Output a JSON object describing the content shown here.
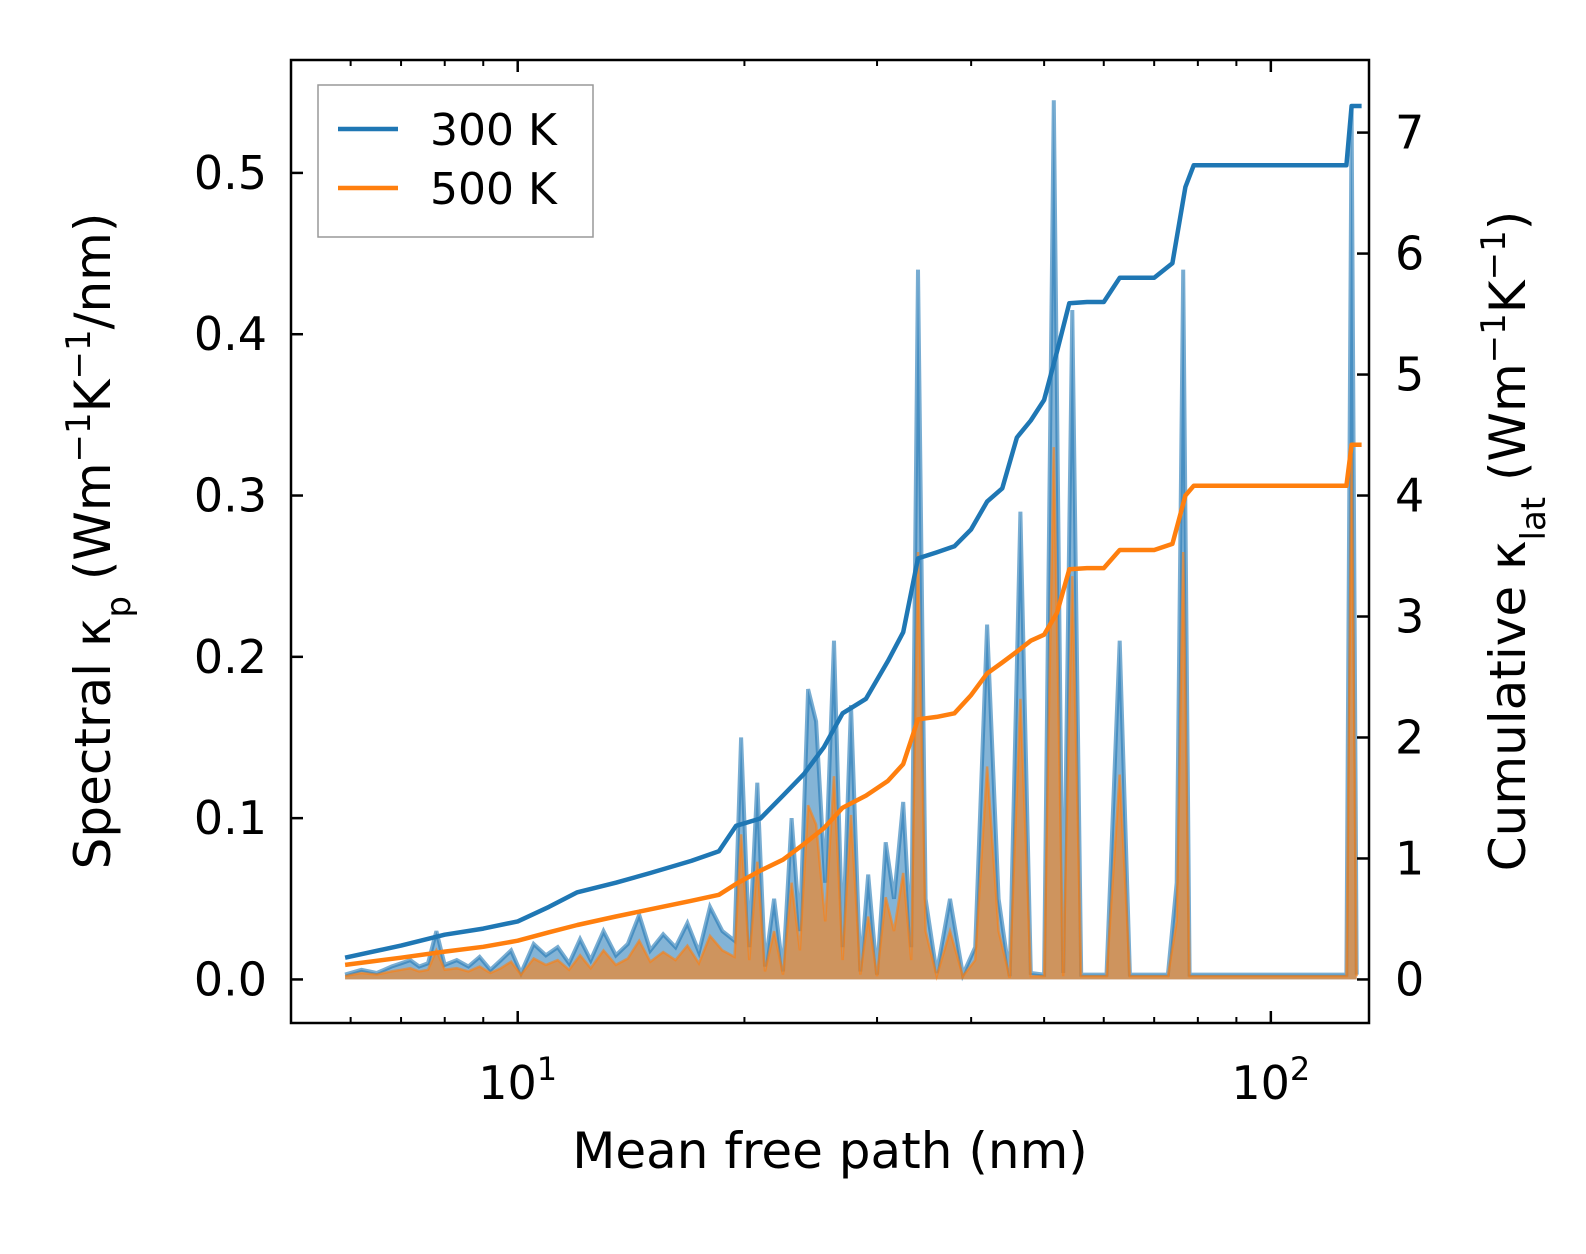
{
  "chart_data": {
    "type": "line",
    "xscale": "log",
    "xlabel": "Mean free path (nm)",
    "ylabel_left": "Spectral κp (Wm−1K−1/nm)",
    "ylabel_right": "Cumulative κlat (Wm−1K−1)",
    "xlim": [
      5.0,
      135
    ],
    "ylim_left": [
      -0.027,
      0.57
    ],
    "ylim_right": [
      -0.36,
      7.6
    ],
    "x_ticks": [
      {
        "value": 10,
        "base": "10",
        "exp": "1"
      },
      {
        "value": 100,
        "base": "10",
        "exp": "2"
      }
    ],
    "left_ticks": [
      {
        "value": 0.0,
        "label": "0.0"
      },
      {
        "value": 0.1,
        "label": "0.1"
      },
      {
        "value": 0.2,
        "label": "0.2"
      },
      {
        "value": 0.3,
        "label": "0.3"
      },
      {
        "value": 0.4,
        "label": "0.4"
      },
      {
        "value": 0.5,
        "label": "0.5"
      }
    ],
    "right_ticks": [
      {
        "value": 0,
        "label": "0"
      },
      {
        "value": 1,
        "label": "1"
      },
      {
        "value": 2,
        "label": "2"
      },
      {
        "value": 3,
        "label": "3"
      },
      {
        "value": 4,
        "label": "4"
      },
      {
        "value": 5,
        "label": "5"
      },
      {
        "value": 6,
        "label": "6"
      },
      {
        "value": 7,
        "label": "7"
      }
    ],
    "legend": {
      "location": "upper-left",
      "entries": [
        "300 K",
        "500 K"
      ]
    },
    "series": [
      {
        "name": "300 K",
        "color": "#1f77b4",
        "cumulative": [
          [
            5.9,
            0.18
          ],
          [
            7.0,
            0.28
          ],
          [
            8.0,
            0.37
          ],
          [
            9.0,
            0.42
          ],
          [
            10.0,
            0.48
          ],
          [
            11.0,
            0.6
          ],
          [
            12.0,
            0.72
          ],
          [
            13.5,
            0.8
          ],
          [
            15.0,
            0.88
          ],
          [
            17.0,
            0.98
          ],
          [
            18.5,
            1.06
          ],
          [
            19.5,
            1.27
          ],
          [
            21.0,
            1.33
          ],
          [
            22.5,
            1.52
          ],
          [
            24.0,
            1.7
          ],
          [
            25.5,
            1.92
          ],
          [
            27.0,
            2.2
          ],
          [
            29.0,
            2.32
          ],
          [
            31.0,
            2.63
          ],
          [
            32.5,
            2.87
          ],
          [
            34.0,
            3.48
          ],
          [
            36.0,
            3.53
          ],
          [
            38.0,
            3.58
          ],
          [
            40.0,
            3.72
          ],
          [
            42.0,
            3.95
          ],
          [
            44.0,
            4.06
          ],
          [
            46.0,
            4.48
          ],
          [
            48.0,
            4.62
          ],
          [
            50.0,
            4.79
          ],
          [
            52.0,
            5.19
          ],
          [
            54.0,
            5.59
          ],
          [
            57.0,
            5.6
          ],
          [
            60.0,
            5.6
          ],
          [
            63.0,
            5.8
          ],
          [
            66.0,
            5.8
          ],
          [
            70.0,
            5.8
          ],
          [
            74.0,
            5.92
          ],
          [
            77.0,
            6.55
          ],
          [
            79.0,
            6.73
          ],
          [
            85.0,
            6.73
          ],
          [
            95.0,
            6.73
          ],
          [
            110.0,
            6.73
          ],
          [
            126.0,
            6.73
          ],
          [
            128.0,
            7.22
          ],
          [
            132.0,
            7.22
          ]
        ],
        "spectral": [
          [
            5.9,
            0.003
          ],
          [
            6.2,
            0.006
          ],
          [
            6.5,
            0.004
          ],
          [
            6.8,
            0.008
          ],
          [
            7.0,
            0.01
          ],
          [
            7.2,
            0.012
          ],
          [
            7.4,
            0.008
          ],
          [
            7.6,
            0.01
          ],
          [
            7.8,
            0.03
          ],
          [
            8.0,
            0.009
          ],
          [
            8.3,
            0.012
          ],
          [
            8.6,
            0.008
          ],
          [
            8.9,
            0.014
          ],
          [
            9.2,
            0.006
          ],
          [
            9.5,
            0.012
          ],
          [
            9.8,
            0.018
          ],
          [
            10.1,
            0.004
          ],
          [
            10.5,
            0.022
          ],
          [
            10.9,
            0.015
          ],
          [
            11.3,
            0.02
          ],
          [
            11.7,
            0.01
          ],
          [
            12.1,
            0.025
          ],
          [
            12.5,
            0.012
          ],
          [
            13.0,
            0.03
          ],
          [
            13.5,
            0.015
          ],
          [
            14.0,
            0.022
          ],
          [
            14.5,
            0.04
          ],
          [
            15.0,
            0.018
          ],
          [
            15.6,
            0.028
          ],
          [
            16.2,
            0.02
          ],
          [
            16.8,
            0.035
          ],
          [
            17.4,
            0.017
          ],
          [
            18.0,
            0.045
          ],
          [
            18.7,
            0.03
          ],
          [
            19.4,
            0.024
          ],
          [
            19.8,
            0.15
          ],
          [
            20.3,
            0.02
          ],
          [
            20.8,
            0.122
          ],
          [
            21.3,
            0.008
          ],
          [
            21.9,
            0.05
          ],
          [
            22.5,
            0.005
          ],
          [
            23.1,
            0.1
          ],
          [
            23.7,
            0.03
          ],
          [
            24.3,
            0.18
          ],
          [
            24.9,
            0.16
          ],
          [
            25.6,
            0.06
          ],
          [
            26.3,
            0.21
          ],
          [
            27.0,
            0.02
          ],
          [
            27.7,
            0.17
          ],
          [
            28.5,
            0.005
          ],
          [
            29.2,
            0.065
          ],
          [
            30.0,
            0.003
          ],
          [
            30.8,
            0.085
          ],
          [
            31.6,
            0.05
          ],
          [
            32.5,
            0.11
          ],
          [
            33.3,
            0.02
          ],
          [
            34.0,
            0.44
          ],
          [
            34.8,
            0.05
          ],
          [
            36.0,
            0.004
          ],
          [
            37.5,
            0.05
          ],
          [
            39.0,
            0.003
          ],
          [
            40.5,
            0.02
          ],
          [
            42.0,
            0.22
          ],
          [
            43.5,
            0.05
          ],
          [
            45.0,
            0.002
          ],
          [
            46.5,
            0.29
          ],
          [
            48.0,
            0.004
          ],
          [
            50.0,
            0.003
          ],
          [
            51.5,
            0.545
          ],
          [
            53.0,
            0.004
          ],
          [
            54.5,
            0.415
          ],
          [
            56.0,
            0.003
          ],
          [
            58.0,
            0.003
          ],
          [
            60.5,
            0.003
          ],
          [
            63.0,
            0.21
          ],
          [
            65.0,
            0.003
          ],
          [
            70.0,
            0.003
          ],
          [
            73.0,
            0.003
          ],
          [
            75.0,
            0.06
          ],
          [
            76.5,
            0.44
          ],
          [
            78.0,
            0.003
          ],
          [
            85.0,
            0.003
          ],
          [
            100.0,
            0.003
          ],
          [
            120.0,
            0.003
          ],
          [
            126.0,
            0.003
          ],
          [
            128.0,
            0.54
          ],
          [
            130.0,
            0.003
          ]
        ]
      },
      {
        "name": "500 K",
        "color": "#ff7f0e",
        "cumulative": [
          [
            5.9,
            0.12
          ],
          [
            7.0,
            0.18
          ],
          [
            8.0,
            0.23
          ],
          [
            9.0,
            0.27
          ],
          [
            10.0,
            0.32
          ],
          [
            11.0,
            0.39
          ],
          [
            12.0,
            0.45
          ],
          [
            13.5,
            0.52
          ],
          [
            15.0,
            0.58
          ],
          [
            17.0,
            0.65
          ],
          [
            18.5,
            0.7
          ],
          [
            19.5,
            0.79
          ],
          [
            21.0,
            0.9
          ],
          [
            22.5,
            0.99
          ],
          [
            24.0,
            1.12
          ],
          [
            25.5,
            1.25
          ],
          [
            27.0,
            1.42
          ],
          [
            29.0,
            1.52
          ],
          [
            31.0,
            1.64
          ],
          [
            32.5,
            1.78
          ],
          [
            34.0,
            2.15
          ],
          [
            36.0,
            2.17
          ],
          [
            38.0,
            2.2
          ],
          [
            40.0,
            2.35
          ],
          [
            42.0,
            2.53
          ],
          [
            44.0,
            2.62
          ],
          [
            46.0,
            2.71
          ],
          [
            48.0,
            2.8
          ],
          [
            50.0,
            2.85
          ],
          [
            52.0,
            3.03
          ],
          [
            54.0,
            3.39
          ],
          [
            57.0,
            3.4
          ],
          [
            60.0,
            3.4
          ],
          [
            63.0,
            3.55
          ],
          [
            66.0,
            3.55
          ],
          [
            70.0,
            3.55
          ],
          [
            74.0,
            3.6
          ],
          [
            77.0,
            4.0
          ],
          [
            79.0,
            4.08
          ],
          [
            85.0,
            4.08
          ],
          [
            95.0,
            4.08
          ],
          [
            110.0,
            4.08
          ],
          [
            126.0,
            4.08
          ],
          [
            128.0,
            4.42
          ],
          [
            132.0,
            4.42
          ]
        ],
        "spectral": [
          [
            5.9,
            0.002
          ],
          [
            6.2,
            0.004
          ],
          [
            6.5,
            0.003
          ],
          [
            6.8,
            0.005
          ],
          [
            7.0,
            0.006
          ],
          [
            7.2,
            0.007
          ],
          [
            7.4,
            0.005
          ],
          [
            7.6,
            0.006
          ],
          [
            7.8,
            0.018
          ],
          [
            8.0,
            0.006
          ],
          [
            8.3,
            0.007
          ],
          [
            8.6,
            0.005
          ],
          [
            8.9,
            0.008
          ],
          [
            9.2,
            0.004
          ],
          [
            9.5,
            0.007
          ],
          [
            9.8,
            0.011
          ],
          [
            10.1,
            0.003
          ],
          [
            10.5,
            0.013
          ],
          [
            10.9,
            0.009
          ],
          [
            11.3,
            0.012
          ],
          [
            11.7,
            0.006
          ],
          [
            12.1,
            0.015
          ],
          [
            12.5,
            0.007
          ],
          [
            13.0,
            0.018
          ],
          [
            13.5,
            0.009
          ],
          [
            14.0,
            0.013
          ],
          [
            14.5,
            0.024
          ],
          [
            15.0,
            0.011
          ],
          [
            15.6,
            0.017
          ],
          [
            16.2,
            0.012
          ],
          [
            16.8,
            0.021
          ],
          [
            17.4,
            0.01
          ],
          [
            18.0,
            0.027
          ],
          [
            18.7,
            0.018
          ],
          [
            19.4,
            0.014
          ],
          [
            19.8,
            0.09
          ],
          [
            20.3,
            0.012
          ],
          [
            20.8,
            0.073
          ],
          [
            21.3,
            0.005
          ],
          [
            21.9,
            0.03
          ],
          [
            22.5,
            0.003
          ],
          [
            23.1,
            0.06
          ],
          [
            23.7,
            0.018
          ],
          [
            24.3,
            0.108
          ],
          [
            24.9,
            0.096
          ],
          [
            25.6,
            0.036
          ],
          [
            26.3,
            0.126
          ],
          [
            27.0,
            0.012
          ],
          [
            27.7,
            0.102
          ],
          [
            28.5,
            0.003
          ],
          [
            29.2,
            0.039
          ],
          [
            30.0,
            0.002
          ],
          [
            30.8,
            0.051
          ],
          [
            31.6,
            0.03
          ],
          [
            32.5,
            0.066
          ],
          [
            33.3,
            0.012
          ],
          [
            34.0,
            0.265
          ],
          [
            34.8,
            0.03
          ],
          [
            36.0,
            0.002
          ],
          [
            37.5,
            0.03
          ],
          [
            39.0,
            0.002
          ],
          [
            40.5,
            0.012
          ],
          [
            42.0,
            0.132
          ],
          [
            43.5,
            0.03
          ],
          [
            45.0,
            0.001
          ],
          [
            46.5,
            0.174
          ],
          [
            48.0,
            0.002
          ],
          [
            50.0,
            0.002
          ],
          [
            51.5,
            0.33
          ],
          [
            53.0,
            0.002
          ],
          [
            54.5,
            0.25
          ],
          [
            56.0,
            0.002
          ],
          [
            58.0,
            0.002
          ],
          [
            60.5,
            0.002
          ],
          [
            63.0,
            0.127
          ],
          [
            65.0,
            0.002
          ],
          [
            70.0,
            0.002
          ],
          [
            73.0,
            0.002
          ],
          [
            75.0,
            0.036
          ],
          [
            76.5,
            0.265
          ],
          [
            78.0,
            0.002
          ],
          [
            85.0,
            0.002
          ],
          [
            100.0,
            0.002
          ],
          [
            120.0,
            0.002
          ],
          [
            126.0,
            0.002
          ],
          [
            128.0,
            0.325
          ],
          [
            130.0,
            0.002
          ]
        ]
      }
    ]
  }
}
